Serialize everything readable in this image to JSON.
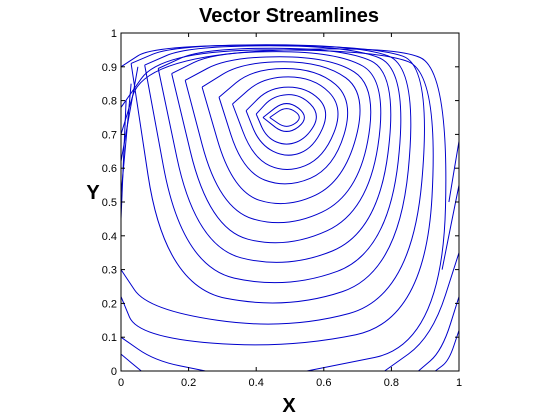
{
  "chart_data": {
    "type": "line",
    "title": "Vector Streamlines",
    "xlabel": "X",
    "ylabel": "Y",
    "xlim": [
      0,
      1
    ],
    "ylim": [
      0,
      1
    ],
    "xticks": [
      "0",
      "0.2",
      "0.4",
      "0.6",
      "0.8",
      "1"
    ],
    "xtick_values": [
      0,
      0.2,
      0.4,
      0.6,
      0.8,
      1
    ],
    "yticks": [
      "0",
      "0.1",
      "0.2",
      "0.3",
      "0.4",
      "0.5",
      "0.6",
      "0.7",
      "0.8",
      "0.9",
      "1"
    ],
    "ytick_values": [
      0,
      0.1,
      0.2,
      0.3,
      0.4,
      0.5,
      0.6,
      0.7,
      0.8,
      0.9,
      1
    ],
    "grid": false,
    "line_color": "#0000cc",
    "vortex_center": [
      0.49,
      0.75
    ],
    "series": [
      {
        "values": [
          [
            0.44,
            0.75
          ],
          [
            0.49,
            0.785
          ],
          [
            0.54,
            0.75
          ],
          [
            0.49,
            0.715
          ],
          [
            0.44,
            0.75
          ]
        ]
      },
      {
        "values": [
          [
            0.42,
            0.75
          ],
          [
            0.49,
            0.805
          ],
          [
            0.56,
            0.75
          ],
          [
            0.49,
            0.695
          ],
          [
            0.42,
            0.75
          ]
        ]
      },
      {
        "values": [
          [
            0.4,
            0.76
          ],
          [
            0.45,
            0.815
          ],
          [
            0.53,
            0.82
          ],
          [
            0.59,
            0.76
          ],
          [
            0.55,
            0.69
          ],
          [
            0.49,
            0.665
          ],
          [
            0.43,
            0.69
          ],
          [
            0.4,
            0.76
          ]
        ]
      },
      {
        "values": [
          [
            0.37,
            0.77
          ],
          [
            0.44,
            0.84
          ],
          [
            0.55,
            0.84
          ],
          [
            0.62,
            0.77
          ],
          [
            0.57,
            0.66
          ],
          [
            0.49,
            0.63
          ],
          [
            0.41,
            0.67
          ],
          [
            0.37,
            0.77
          ]
        ]
      },
      {
        "values": [
          [
            0.33,
            0.79
          ],
          [
            0.42,
            0.87
          ],
          [
            0.57,
            0.87
          ],
          [
            0.66,
            0.78
          ],
          [
            0.6,
            0.63
          ],
          [
            0.49,
            0.585
          ],
          [
            0.39,
            0.63
          ],
          [
            0.33,
            0.79
          ]
        ]
      },
      {
        "values": [
          [
            0.29,
            0.81
          ],
          [
            0.39,
            0.895
          ],
          [
            0.58,
            0.895
          ],
          [
            0.69,
            0.8
          ],
          [
            0.63,
            0.6
          ],
          [
            0.49,
            0.54
          ],
          [
            0.36,
            0.59
          ],
          [
            0.29,
            0.81
          ]
        ]
      },
      {
        "values": [
          [
            0.24,
            0.84
          ],
          [
            0.36,
            0.915
          ],
          [
            0.6,
            0.915
          ],
          [
            0.73,
            0.82
          ],
          [
            0.66,
            0.56
          ],
          [
            0.49,
            0.48
          ],
          [
            0.33,
            0.53
          ],
          [
            0.24,
            0.84
          ]
        ]
      },
      {
        "values": [
          [
            0.19,
            0.86
          ],
          [
            0.32,
            0.93
          ],
          [
            0.62,
            0.93
          ],
          [
            0.76,
            0.84
          ],
          [
            0.7,
            0.52
          ],
          [
            0.49,
            0.42
          ],
          [
            0.29,
            0.48
          ],
          [
            0.19,
            0.86
          ]
        ]
      },
      {
        "values": [
          [
            0.15,
            0.88
          ],
          [
            0.28,
            0.945
          ],
          [
            0.64,
            0.945
          ],
          [
            0.79,
            0.86
          ],
          [
            0.73,
            0.47
          ],
          [
            0.49,
            0.36
          ],
          [
            0.26,
            0.42
          ],
          [
            0.15,
            0.88
          ]
        ]
      },
      {
        "values": [
          [
            0.11,
            0.895
          ],
          [
            0.24,
            0.955
          ],
          [
            0.66,
            0.955
          ],
          [
            0.82,
            0.88
          ],
          [
            0.76,
            0.41
          ],
          [
            0.49,
            0.3
          ],
          [
            0.22,
            0.37
          ],
          [
            0.11,
            0.895
          ]
        ]
      },
      {
        "values": [
          [
            0.07,
            0.905
          ],
          [
            0.2,
            0.962
          ],
          [
            0.68,
            0.962
          ],
          [
            0.85,
            0.89
          ],
          [
            0.79,
            0.35
          ],
          [
            0.49,
            0.24
          ],
          [
            0.18,
            0.31
          ],
          [
            0.07,
            0.905
          ]
        ]
      },
      {
        "values": [
          [
            0.03,
            0.91
          ],
          [
            0.16,
            0.965
          ],
          [
            0.7,
            0.965
          ],
          [
            0.88,
            0.9
          ],
          [
            0.82,
            0.29
          ],
          [
            0.49,
            0.18
          ],
          [
            0.13,
            0.25
          ],
          [
            0.03,
            0.91
          ]
        ]
      },
      {
        "values": [
          [
            0.0,
            0.9
          ],
          [
            0.1,
            0.965
          ],
          [
            0.75,
            0.962
          ],
          [
            0.92,
            0.9
          ],
          [
            0.86,
            0.22
          ],
          [
            0.49,
            0.12
          ],
          [
            0.08,
            0.18
          ],
          [
            0.0,
            0.3
          ]
        ]
      },
      {
        "values": [
          [
            0.0,
            0.78
          ],
          [
            0.12,
            0.95
          ],
          [
            0.76,
            0.95
          ],
          [
            0.94,
            0.88
          ],
          [
            0.9,
            0.15
          ],
          [
            0.49,
            0.065
          ],
          [
            0.05,
            0.1
          ],
          [
            0.0,
            0.22
          ]
        ]
      },
      {
        "values": [
          [
            0.0,
            0.7
          ],
          [
            0.07,
            0.93
          ],
          [
            0.8,
            0.965
          ],
          [
            0.97,
            0.89
          ],
          [
            0.95,
            0.08
          ],
          [
            0.55,
            0.0
          ]
        ]
      },
      {
        "values": [
          [
            0.0,
            0.62
          ],
          [
            0.05,
            0.9
          ]
        ]
      },
      {
        "values": [
          [
            0.0,
            0.52
          ],
          [
            0.03,
            0.85
          ]
        ]
      },
      {
        "values": [
          [
            0.0,
            0.45
          ],
          [
            0.015,
            0.8
          ]
        ]
      },
      {
        "values": [
          [
            0.0,
            0.1
          ],
          [
            0.1,
            0.03
          ],
          [
            0.25,
            0.0
          ]
        ]
      },
      {
        "values": [
          [
            0.0,
            0.05
          ],
          [
            0.06,
            0.0
          ]
        ]
      },
      {
        "values": [
          [
            1.0,
            0.35
          ],
          [
            0.92,
            0.1
          ],
          [
            0.78,
            0.0
          ]
        ]
      },
      {
        "values": [
          [
            1.0,
            0.22
          ],
          [
            0.95,
            0.06
          ],
          [
            0.88,
            0.0
          ]
        ]
      },
      {
        "values": [
          [
            1.0,
            0.12
          ],
          [
            0.97,
            0.03
          ],
          [
            0.93,
            0.0
          ]
        ]
      },
      {
        "values": [
          [
            1.0,
            0.55
          ],
          [
            0.95,
            0.3
          ]
        ]
      },
      {
        "values": [
          [
            1.0,
            0.68
          ],
          [
            0.97,
            0.5
          ]
        ]
      }
    ]
  }
}
